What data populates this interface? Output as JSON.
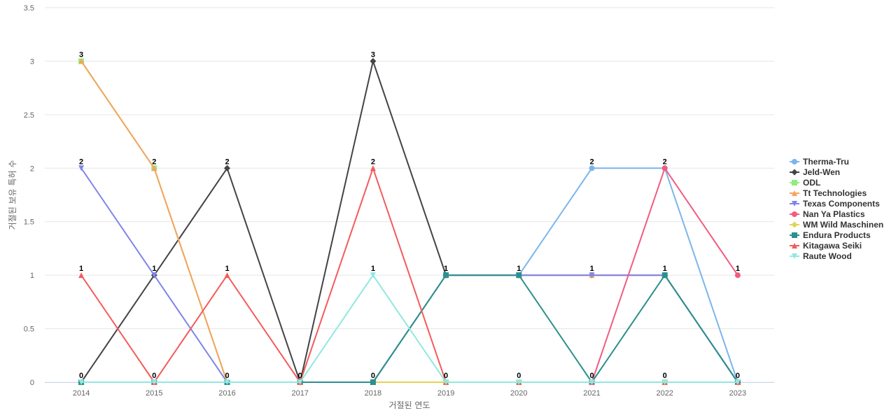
{
  "chart_data": {
    "type": "line",
    "title": "",
    "xlabel": "거절된 연도",
    "ylabel": "거절된 보유 특허 수",
    "categories": [
      "2014",
      "2015",
      "2016",
      "2017",
      "2018",
      "2019",
      "2020",
      "2021",
      "2022",
      "2023"
    ],
    "ylim": [
      0,
      3.5
    ],
    "yticks": [
      "0",
      "0.5",
      "1",
      "1.5",
      "2",
      "2.5",
      "3",
      "3.5"
    ],
    "grid": "horizontal",
    "legend_position": "right",
    "data_labels": true,
    "series": [
      {
        "name": "Therma-Tru",
        "color": "#7cb5ec",
        "marker": "circle",
        "values": [
          0,
          0,
          0,
          0,
          0,
          1,
          1,
          2,
          2,
          0
        ]
      },
      {
        "name": "Jeld-Wen",
        "color": "#434348",
        "marker": "diamond",
        "values": [
          0,
          1,
          2,
          0,
          3,
          1,
          1,
          1,
          1,
          0
        ]
      },
      {
        "name": "ODL",
        "color": "#90ed7d",
        "marker": "square",
        "values": [
          3,
          2,
          0,
          0,
          0,
          0,
          0,
          0,
          0,
          0
        ]
      },
      {
        "name": "Tt Technologies",
        "color": "#f7a35c",
        "marker": "triangle",
        "values": [
          3,
          2,
          0,
          0,
          0,
          1,
          1,
          1,
          1,
          0
        ]
      },
      {
        "name": "Texas Components",
        "color": "#8085e9",
        "marker": "triangle-down",
        "values": [
          2,
          1,
          0,
          0,
          0,
          1,
          1,
          1,
          1,
          0
        ]
      },
      {
        "name": "Nan Ya Plastics",
        "color": "#f15c80",
        "marker": "circle",
        "values": [
          null,
          null,
          null,
          null,
          null,
          null,
          null,
          0,
          2,
          1
        ]
      },
      {
        "name": "WM Wild Maschinen",
        "color": "#e4d354",
        "marker": "diamond",
        "values": [
          0,
          0,
          0,
          0,
          0,
          0,
          0,
          0,
          0,
          0
        ]
      },
      {
        "name": "Endura Products",
        "color": "#2b908f",
        "marker": "square",
        "values": [
          0,
          0,
          0,
          0,
          0,
          1,
          1,
          0,
          1,
          0
        ]
      },
      {
        "name": "Kitagawa Seiki",
        "color": "#f45b5b",
        "marker": "triangle",
        "values": [
          1,
          0,
          1,
          0,
          2,
          0,
          0,
          0,
          0,
          0
        ]
      },
      {
        "name": "Raute Wood",
        "color": "#91e8e1",
        "marker": "triangle-down",
        "values": [
          0,
          0,
          0,
          0,
          1,
          0,
          0,
          0,
          0,
          0
        ]
      }
    ],
    "point_labels": [
      {
        "category": "2014",
        "value": 3,
        "text": "3"
      },
      {
        "category": "2014",
        "value": 2,
        "text": "2"
      },
      {
        "category": "2014",
        "value": 1,
        "text": "1"
      },
      {
        "category": "2014",
        "value": 0,
        "text": "0"
      },
      {
        "category": "2015",
        "value": 2,
        "text": "2"
      },
      {
        "category": "2015",
        "value": 1,
        "text": "1"
      },
      {
        "category": "2015",
        "value": 0,
        "text": "0"
      },
      {
        "category": "2016",
        "value": 2,
        "text": "2"
      },
      {
        "category": "2016",
        "value": 1,
        "text": "1"
      },
      {
        "category": "2016",
        "value": 0,
        "text": "0"
      },
      {
        "category": "2017",
        "value": 0,
        "text": "0"
      },
      {
        "category": "2018",
        "value": 3,
        "text": "3"
      },
      {
        "category": "2018",
        "value": 2,
        "text": "2"
      },
      {
        "category": "2018",
        "value": 1,
        "text": "1"
      },
      {
        "category": "2018",
        "value": 0,
        "text": "0"
      },
      {
        "category": "2019",
        "value": 1,
        "text": "1"
      },
      {
        "category": "2019",
        "value": 0,
        "text": "0"
      },
      {
        "category": "2020",
        "value": 1,
        "text": "1"
      },
      {
        "category": "2020",
        "value": 0,
        "text": "0"
      },
      {
        "category": "2021",
        "value": 2,
        "text": "2"
      },
      {
        "category": "2021",
        "value": 1,
        "text": "1"
      },
      {
        "category": "2021",
        "value": 0,
        "text": "0"
      },
      {
        "category": "2022",
        "value": 2,
        "text": "2"
      },
      {
        "category": "2022",
        "value": 1,
        "text": "1"
      },
      {
        "category": "2022",
        "value": 0,
        "text": "0"
      },
      {
        "category": "2023",
        "value": 1,
        "text": "1"
      },
      {
        "category": "2023",
        "value": 0,
        "text": "0"
      }
    ]
  }
}
